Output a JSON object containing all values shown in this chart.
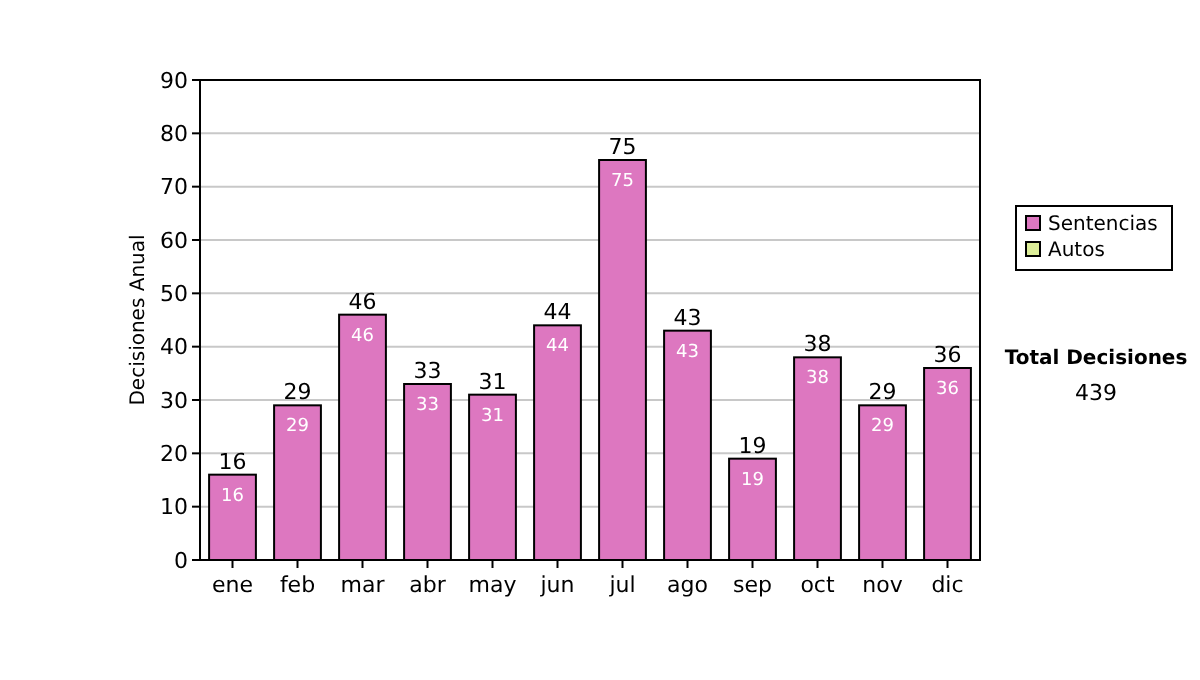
{
  "chart_data": {
    "type": "bar",
    "ylabel": "Decisiones Anual",
    "categories": [
      "ene",
      "feb",
      "mar",
      "abr",
      "may",
      "jun",
      "jul",
      "ago",
      "sep",
      "oct",
      "nov",
      "dic"
    ],
    "series": [
      {
        "name": "Sentencias",
        "color": "#dd77c0",
        "values": [
          16,
          29,
          46,
          33,
          31,
          44,
          75,
          43,
          19,
          38,
          29,
          36
        ],
        "value_labels": [
          "16",
          "29",
          "46",
          "33",
          "31",
          "44",
          "75",
          "43",
          "19",
          "38",
          "29",
          "36"
        ]
      },
      {
        "name": "Autos",
        "color": "#ddee99",
        "values": [
          0,
          0,
          0,
          0,
          0,
          0,
          0,
          0,
          0,
          0,
          0,
          0
        ],
        "value_labels": [
          null,
          null,
          null,
          null,
          null,
          null,
          null,
          null,
          null,
          null,
          null,
          null
        ]
      }
    ],
    "stacked": true,
    "ylim": [
      0,
      90
    ],
    "yticks": [
      0,
      10,
      20,
      30,
      40,
      50,
      60,
      70,
      80,
      90
    ],
    "grid": "y",
    "legend": "right",
    "totals": [
      "16",
      "29",
      "46",
      "33",
      "31",
      "44",
      "75",
      "43",
      "19",
      "38",
      "29",
      "36"
    ],
    "annotations": [
      "Total Decisiones",
      "439"
    ]
  }
}
